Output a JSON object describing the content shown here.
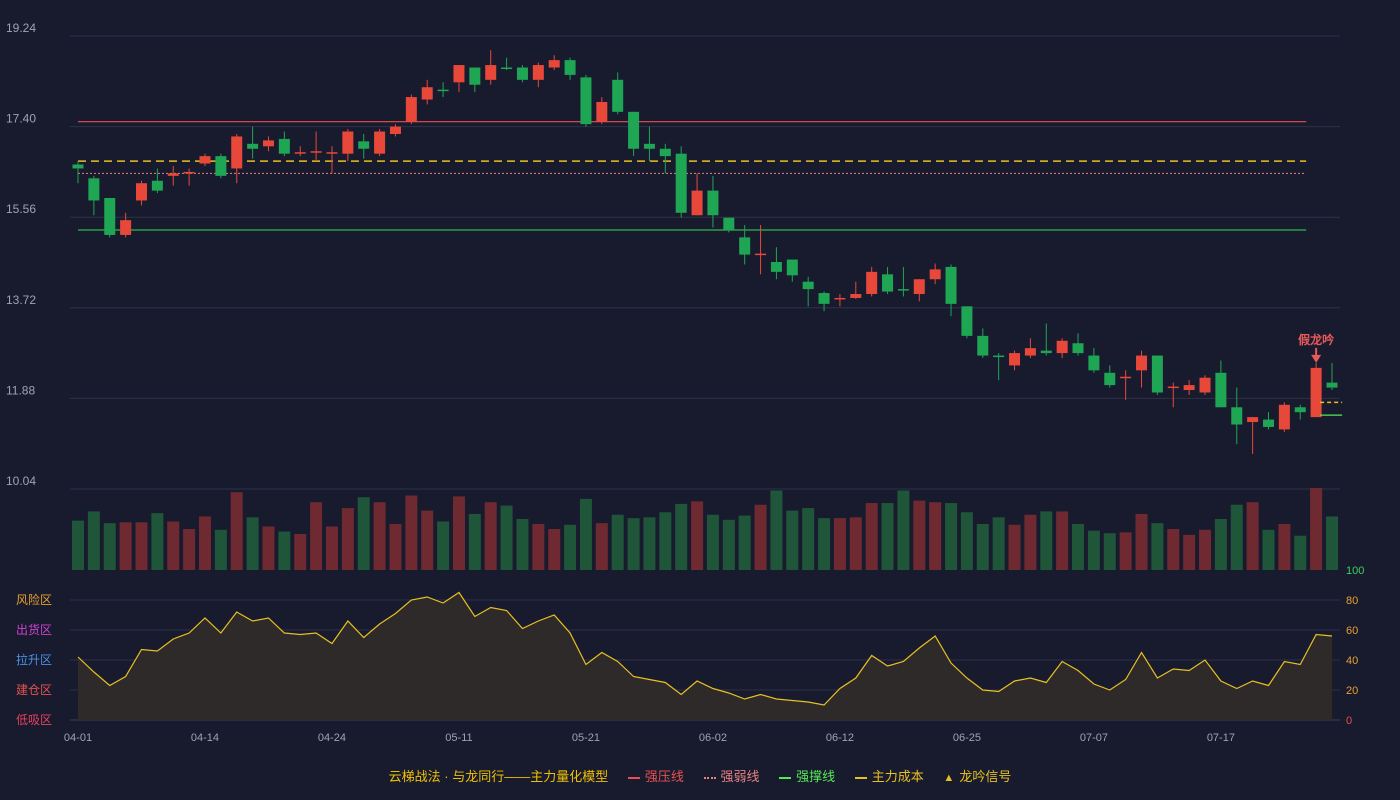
{
  "colors": {
    "up": "#e8483a",
    "down": "#1fa654",
    "grid": "#2e3246",
    "axis_text": "#9ea3b3",
    "bg": "#181b2e",
    "pressure": "#e85050",
    "weak": "#e88080",
    "support": "#2db84a",
    "cost": "#e8c020",
    "osc": "#e8c020"
  },
  "chart_data": [
    {
      "type": "candlestick",
      "ylim": [
        10.04,
        19.24
      ],
      "y_ticks": [
        "19.24",
        "17.40",
        "15.56",
        "13.72",
        "11.88",
        "10.04"
      ],
      "x_ticks": [
        {
          "i": 0,
          "label": "04-01"
        },
        {
          "i": 8,
          "label": "04-14"
        },
        {
          "i": 16,
          "label": "04-24"
        },
        {
          "i": 24,
          "label": "05-11"
        },
        {
          "i": 32,
          "label": "05-21"
        },
        {
          "i": 40,
          "label": "06-02"
        },
        {
          "i": 48,
          "label": "06-12"
        },
        {
          "i": 56,
          "label": "06-25"
        },
        {
          "i": 64,
          "label": "07-07"
        },
        {
          "i": 72,
          "label": "07-17"
        }
      ],
      "candles": [
        [
          16.63,
          16.55,
          16.7,
          16.25
        ],
        [
          16.35,
          15.9,
          16.4,
          15.6
        ],
        [
          15.95,
          15.2,
          15.95,
          15.15
        ],
        [
          15.2,
          15.5,
          15.65,
          15.15
        ],
        [
          15.9,
          16.25,
          16.3,
          15.8
        ],
        [
          16.3,
          16.1,
          16.55,
          16.05
        ],
        [
          16.4,
          16.45,
          16.6,
          16.2
        ],
        [
          16.45,
          16.48,
          16.55,
          16.2
        ],
        [
          16.65,
          16.8,
          16.85,
          16.6
        ],
        [
          16.8,
          16.4,
          16.85,
          16.35
        ],
        [
          16.55,
          17.2,
          17.25,
          16.25
        ],
        [
          17.05,
          16.95,
          17.4,
          16.75
        ],
        [
          17.0,
          17.12,
          17.2,
          16.9
        ],
        [
          17.15,
          16.85,
          17.3,
          16.8
        ],
        [
          16.85,
          16.88,
          17.0,
          16.8
        ],
        [
          16.88,
          16.9,
          17.3,
          16.7
        ],
        [
          16.85,
          16.88,
          17.0,
          16.45
        ],
        [
          16.85,
          17.3,
          17.35,
          16.7
        ],
        [
          17.1,
          16.95,
          17.25,
          16.75
        ],
        [
          16.85,
          17.3,
          17.35,
          16.8
        ],
        [
          17.25,
          17.4,
          17.45,
          17.2
        ],
        [
          17.5,
          18.0,
          18.05,
          17.45
        ],
        [
          17.95,
          18.2,
          18.35,
          17.85
        ],
        [
          18.15,
          18.12,
          18.3,
          18.0
        ],
        [
          18.3,
          18.65,
          18.65,
          18.1
        ],
        [
          18.6,
          18.25,
          18.6,
          18.1
        ],
        [
          18.35,
          18.65,
          18.95,
          18.25
        ],
        [
          18.6,
          18.58,
          18.8,
          18.55
        ],
        [
          18.6,
          18.35,
          18.65,
          18.3
        ],
        [
          18.35,
          18.65,
          18.7,
          18.2
        ],
        [
          18.6,
          18.75,
          18.85,
          18.55
        ],
        [
          18.75,
          18.45,
          18.8,
          18.35
        ],
        [
          18.4,
          17.45,
          18.45,
          17.4
        ],
        [
          17.5,
          17.9,
          18.0,
          17.45
        ],
        [
          18.35,
          17.7,
          18.5,
          17.65
        ],
        [
          17.7,
          16.95,
          17.7,
          16.8
        ],
        [
          17.05,
          16.95,
          17.4,
          16.7
        ],
        [
          16.95,
          16.8,
          17.05,
          16.45
        ],
        [
          16.85,
          15.65,
          17.0,
          15.55
        ],
        [
          15.6,
          16.1,
          16.45,
          15.6
        ],
        [
          16.1,
          15.6,
          16.4,
          15.35
        ],
        [
          15.55,
          15.3,
          15.55,
          15.25
        ],
        [
          15.15,
          14.8,
          15.4,
          14.6
        ],
        [
          14.8,
          14.82,
          15.4,
          14.4
        ],
        [
          14.65,
          14.45,
          14.95,
          14.3
        ],
        [
          14.7,
          14.38,
          14.7,
          14.25
        ],
        [
          14.25,
          14.1,
          14.35,
          13.75
        ],
        [
          14.02,
          13.8,
          14.05,
          13.65
        ],
        [
          13.9,
          13.92,
          14.0,
          13.75
        ],
        [
          13.92,
          14.0,
          14.25,
          13.9
        ],
        [
          14.0,
          14.45,
          14.55,
          13.95
        ],
        [
          14.4,
          14.05,
          14.55,
          14.0
        ],
        [
          14.1,
          14.08,
          14.55,
          13.95
        ],
        [
          14.0,
          14.3,
          14.3,
          13.85
        ],
        [
          14.3,
          14.5,
          14.62,
          14.2
        ],
        [
          14.55,
          13.8,
          14.6,
          13.55
        ],
        [
          13.75,
          13.15,
          13.75,
          13.1
        ],
        [
          13.15,
          12.75,
          13.3,
          12.7
        ],
        [
          12.75,
          12.72,
          12.8,
          12.25
        ],
        [
          12.55,
          12.8,
          12.85,
          12.45
        ],
        [
          12.75,
          12.9,
          13.1,
          12.7
        ],
        [
          12.85,
          12.8,
          13.4,
          12.75
        ],
        [
          12.8,
          13.05,
          13.1,
          12.7
        ],
        [
          13.0,
          12.8,
          13.2,
          12.75
        ],
        [
          12.75,
          12.45,
          12.9,
          12.4
        ],
        [
          12.4,
          12.15,
          12.55,
          12.1
        ],
        [
          12.3,
          12.32,
          12.45,
          11.85
        ],
        [
          12.45,
          12.75,
          12.85,
          12.1
        ],
        [
          12.75,
          12.0,
          12.75,
          11.95
        ],
        [
          12.1,
          12.12,
          12.2,
          11.7
        ],
        [
          12.05,
          12.15,
          12.25,
          11.95
        ],
        [
          12.0,
          12.3,
          12.35,
          11.95
        ],
        [
          12.4,
          11.7,
          12.65,
          11.7
        ],
        [
          11.7,
          11.35,
          12.1,
          10.95
        ],
        [
          11.4,
          11.5,
          11.5,
          10.75
        ],
        [
          11.45,
          11.3,
          11.6,
          11.25
        ],
        [
          11.25,
          11.75,
          11.8,
          11.2
        ],
        [
          11.7,
          11.6,
          11.75,
          11.45
        ],
        [
          11.5,
          12.5,
          12.6,
          11.5
        ],
        [
          12.2,
          12.1,
          12.6,
          12.05
        ]
      ],
      "lines": {
        "pressure": 17.5,
        "weak": 16.45,
        "support": 15.3,
        "cost": 16.7
      },
      "annotation": {
        "text": "假龙吟",
        "index": 78
      }
    },
    {
      "type": "bar",
      "name": "volume",
      "values": [
        59,
        70,
        56,
        57,
        57,
        68,
        58,
        49,
        64,
        48,
        93,
        63,
        52,
        46,
        43,
        81,
        52,
        74,
        87,
        81,
        55,
        89,
        71,
        58,
        88,
        67,
        81,
        77,
        61,
        55,
        49,
        54,
        85,
        56,
        66,
        62,
        63,
        69,
        79,
        82,
        66,
        60,
        65,
        78,
        95,
        71,
        74,
        62,
        62,
        63,
        80,
        80,
        95,
        83,
        81,
        80,
        69,
        55,
        63,
        54,
        66,
        70,
        70,
        55,
        47,
        44,
        45,
        67,
        56,
        49,
        42,
        48,
        61,
        78,
        81,
        48,
        55,
        41,
        98,
        64
      ]
    },
    {
      "type": "area",
      "name": "oscillator",
      "ylim": [
        0,
        100
      ],
      "y_ticks": [
        "100",
        "80",
        "60",
        "40",
        "20",
        "0"
      ],
      "zones": [
        {
          "label": "风险区",
          "color": "#e8a030"
        },
        {
          "label": "出货区",
          "color": "#d040d0"
        },
        {
          "label": "拉升区",
          "color": "#4a90e8"
        },
        {
          "label": "建仓区",
          "color": "#e85050"
        },
        {
          "label": "低吸区",
          "color": "#e8405a"
        }
      ],
      "values": [
        42,
        32,
        23,
        29,
        47,
        46,
        54,
        58,
        68,
        58,
        72,
        66,
        68,
        58,
        57,
        58,
        51,
        66,
        55,
        64,
        71,
        80,
        82,
        78,
        85,
        69,
        75,
        73,
        61,
        66,
        70,
        58,
        37,
        45,
        39,
        29,
        27,
        25,
        17,
        26,
        21,
        18,
        14,
        17,
        14,
        13,
        12,
        10,
        21,
        28,
        43,
        36,
        39,
        48,
        56,
        38,
        28,
        20,
        19,
        26,
        28,
        25,
        39,
        33,
        24,
        20,
        27,
        45,
        28,
        34,
        33,
        40,
        26,
        21,
        26,
        23,
        39,
        37,
        57,
        56
      ]
    }
  ],
  "legend": {
    "title": "云梯战法 · 与龙同行——主力量化模型",
    "items": [
      {
        "label": "强压线",
        "color": "#e85050",
        "style": "solid"
      },
      {
        "label": "强弱线",
        "color": "#e88080",
        "style": "dotted"
      },
      {
        "label": "强撑线",
        "color": "#55e855",
        "style": "solid"
      },
      {
        "label": "主力成本",
        "color": "#e8c020",
        "style": "dashed"
      },
      {
        "label": "龙吟信号",
        "color": "#e8c020",
        "style": "triangle"
      }
    ]
  }
}
